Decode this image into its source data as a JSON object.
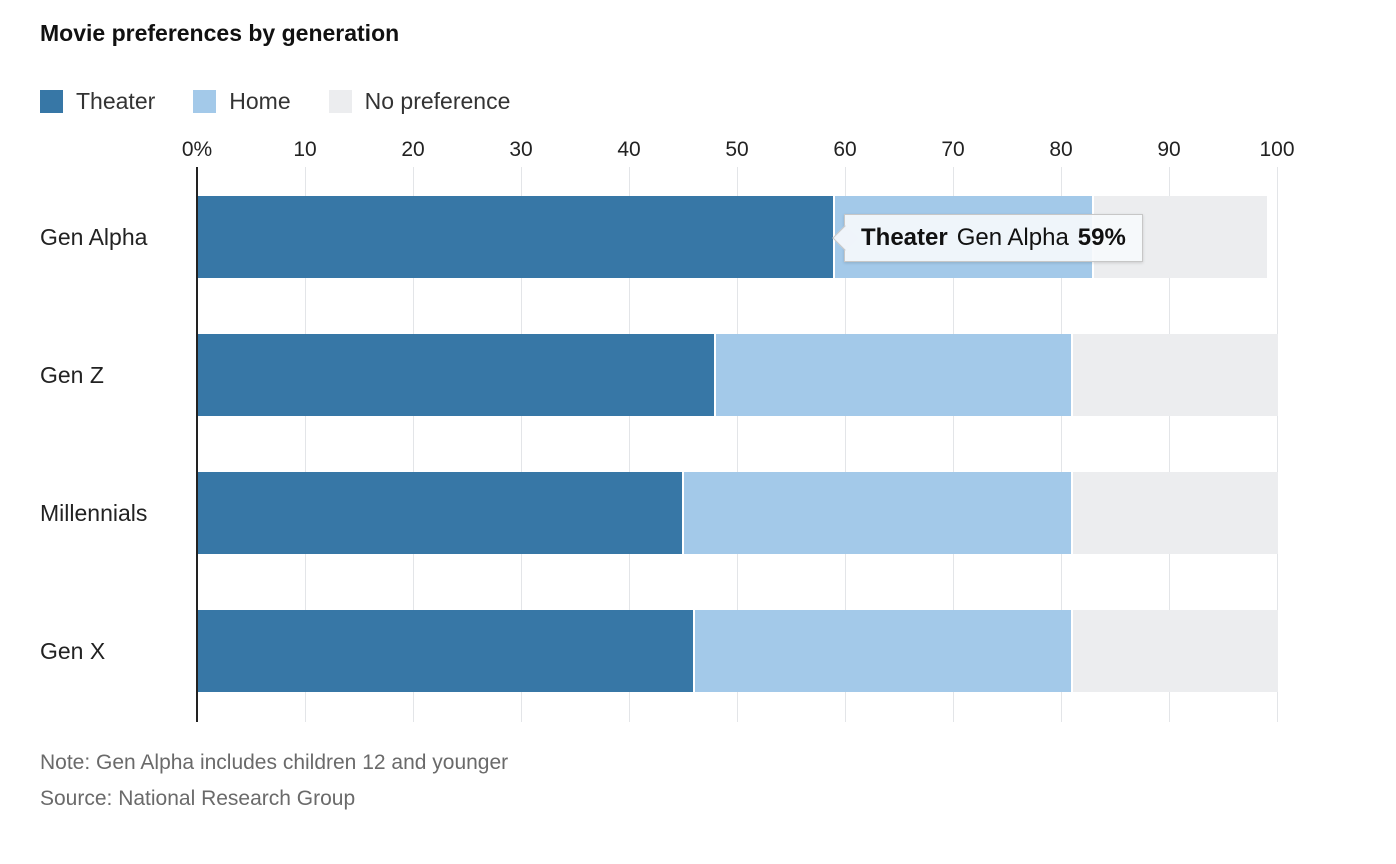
{
  "title": "Movie preferences by generation",
  "legend": {
    "items": [
      {
        "label": "Theater",
        "color": "#3777a6"
      },
      {
        "label": "Home",
        "color": "#a3c9e9"
      },
      {
        "label": "No preference",
        "color": "#ecedef"
      }
    ]
  },
  "tooltip": {
    "series": "Theater",
    "category": "Gen Alpha",
    "value": "59%"
  },
  "note": "Note: Gen Alpha includes children 12 and younger",
  "source": "Source: National Research Group",
  "chart_data": {
    "type": "bar",
    "subtype": "horizontal-stacked",
    "title": "Movie preferences by generation",
    "categories": [
      "Gen Alpha",
      "Gen Z",
      "Millennials",
      "Gen X"
    ],
    "series": [
      {
        "name": "Theater",
        "color": "#3777a6",
        "values": [
          59,
          48,
          45,
          46
        ]
      },
      {
        "name": "Home",
        "color": "#a3c9e9",
        "values": [
          24,
          33,
          36,
          35
        ]
      },
      {
        "name": "No preference",
        "color": "#ecedef",
        "values": [
          16,
          19,
          19,
          19
        ]
      }
    ],
    "x_ticks": [
      "0%",
      "10",
      "20",
      "30",
      "40",
      "50",
      "60",
      "70",
      "80",
      "90",
      "100"
    ],
    "xlim": [
      0,
      100
    ],
    "grid": true,
    "legend_position": "top",
    "xlabel": "",
    "ylabel": ""
  }
}
